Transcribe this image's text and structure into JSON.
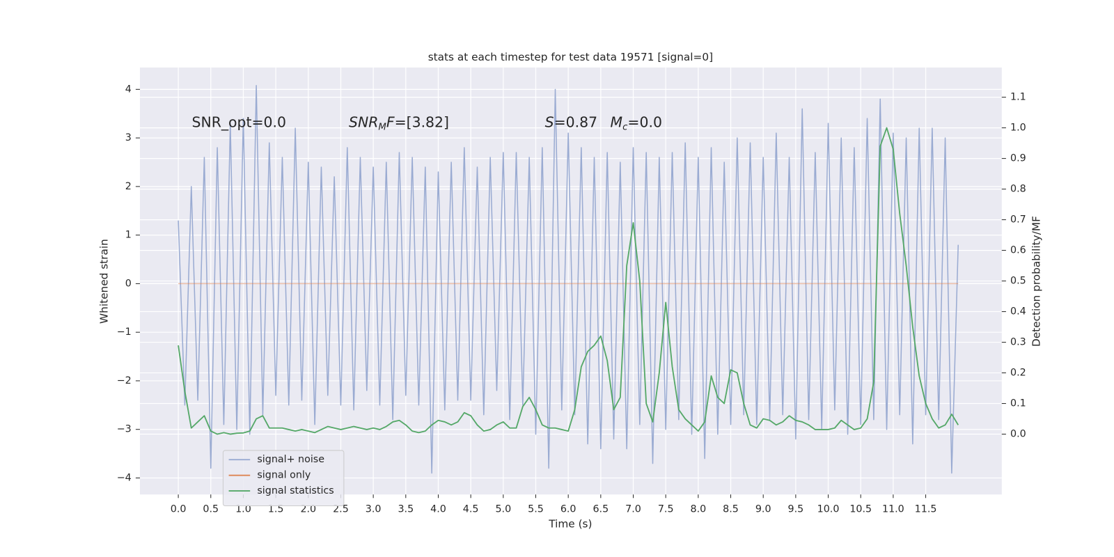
{
  "chart_data": {
    "type": "line",
    "title": "stats at each timestep for test data 19571 [signal=0]",
    "xlabel": "Time (s)",
    "ylabel": "Whitened strain",
    "y2label": "Detection probability/MF",
    "annotations": [
      [
        {
          "text": "SNR_opt=0.0"
        }
      ],
      [
        {
          "text": "SNR",
          "italic": true
        },
        {
          "text": "M",
          "italic": true,
          "sub": true
        },
        {
          "text": "F",
          "italic": true
        },
        {
          "text": "=[3.82]"
        }
      ],
      [
        {
          "text": "S",
          "italic": true
        },
        {
          "text": "=0.87"
        }
      ],
      [
        {
          "text": "M",
          "italic": true
        },
        {
          "text": "c",
          "italic": true,
          "sub": true
        },
        {
          "text": "=0.0"
        }
      ]
    ],
    "x": [
      0,
      0.1,
      0.2,
      0.3,
      0.4,
      0.5,
      0.6,
      0.7,
      0.8,
      0.9,
      1,
      1.1,
      1.2,
      1.3,
      1.4,
      1.5,
      1.6,
      1.7,
      1.8,
      1.9,
      2,
      2.1,
      2.2,
      2.3,
      2.4,
      2.5,
      2.6,
      2.7,
      2.8,
      2.9,
      3,
      3.1,
      3.2,
      3.3,
      3.4,
      3.5,
      3.6,
      3.7,
      3.8,
      3.9,
      4,
      4.1,
      4.2,
      4.3,
      4.4,
      4.5,
      4.6,
      4.7,
      4.8,
      4.9,
      5,
      5.1,
      5.2,
      5.3,
      5.4,
      5.5,
      5.6,
      5.7,
      5.8,
      5.9,
      6,
      6.1,
      6.2,
      6.3,
      6.4,
      6.5,
      6.6,
      6.7,
      6.8,
      6.9,
      7,
      7.1,
      7.2,
      7.3,
      7.4,
      7.5,
      7.6,
      7.7,
      7.8,
      7.9,
      8,
      8.1,
      8.2,
      8.3,
      8.4,
      8.5,
      8.6,
      8.7,
      8.8,
      8.9,
      9,
      9.1,
      9.2,
      9.3,
      9.4,
      9.5,
      9.6,
      9.7,
      9.8,
      9.9,
      10,
      10.1,
      10.2,
      10.3,
      10.4,
      10.5,
      10.6,
      10.7,
      10.8,
      10.9,
      11,
      11.1,
      11.2,
      11.3,
      11.4,
      11.5,
      11.6,
      11.7,
      11.8,
      11.9,
      12
    ],
    "series": [
      {
        "name": "signal+ noise",
        "color": "#9aabd2",
        "values": [
          1.3,
          -2.5,
          2.0,
          -2.4,
          2.6,
          -3.8,
          2.8,
          -2.9,
          3.3,
          -3.0,
          3.4,
          -3.1,
          4.08,
          -2.7,
          2.9,
          -2.3,
          2.6,
          -2.5,
          3.2,
          -2.4,
          2.5,
          -2.9,
          2.4,
          -2.3,
          2.2,
          -2.5,
          2.8,
          -2.6,
          2.6,
          -2.2,
          2.4,
          -2.5,
          2.5,
          -2.8,
          2.7,
          -2.3,
          2.6,
          -2.5,
          2.4,
          -3.9,
          2.3,
          -2.6,
          2.5,
          -2.4,
          2.8,
          -2.4,
          2.4,
          -2.7,
          2.6,
          -2.2,
          2.7,
          -2.8,
          2.7,
          -2.5,
          2.6,
          -3.1,
          2.8,
          -3.8,
          4.0,
          -2.6,
          3.1,
          -2.7,
          2.8,
          -3.3,
          2.6,
          -3.4,
          2.7,
          -3.2,
          2.5,
          -3.4,
          2.8,
          -2.9,
          2.7,
          -3.7,
          2.6,
          -3.0,
          2.7,
          -2.8,
          2.9,
          -3.1,
          2.6,
          -3.6,
          2.8,
          -3.1,
          2.5,
          -2.9,
          3.0,
          -2.7,
          2.9,
          -2.9,
          2.6,
          -2.8,
          3.1,
          -2.7,
          2.6,
          -3.2,
          3.6,
          -2.8,
          2.7,
          -3.0,
          3.3,
          -2.6,
          3.0,
          -3.1,
          2.8,
          -2.9,
          3.4,
          -2.8,
          3.8,
          -3.0,
          3.1,
          -2.7,
          3.0,
          -3.3,
          3.2,
          -2.7,
          3.2,
          -2.8,
          3.0,
          -3.9,
          0.8
        ]
      },
      {
        "name": "signal only",
        "color": "#dd8452",
        "values": [
          0,
          0,
          0,
          0,
          0,
          0,
          0,
          0,
          0,
          0,
          0,
          0,
          0,
          0,
          0,
          0,
          0,
          0,
          0,
          0,
          0,
          0,
          0,
          0,
          0,
          0,
          0,
          0,
          0,
          0,
          0,
          0,
          0,
          0,
          0,
          0,
          0,
          0,
          0,
          0,
          0,
          0,
          0,
          0,
          0,
          0,
          0,
          0,
          0,
          0,
          0,
          0,
          0,
          0,
          0,
          0,
          0,
          0,
          0,
          0,
          0,
          0,
          0,
          0,
          0,
          0,
          0,
          0,
          0,
          0,
          0,
          0,
          0,
          0,
          0,
          0,
          0,
          0,
          0,
          0,
          0,
          0,
          0,
          0,
          0,
          0,
          0,
          0,
          0,
          0,
          0,
          0,
          0,
          0,
          0,
          0,
          0,
          0,
          0,
          0,
          0,
          0,
          0,
          0,
          0,
          0,
          0,
          0,
          0,
          0,
          0,
          0,
          0,
          0,
          0,
          0,
          0,
          0,
          0,
          0,
          0
        ]
      },
      {
        "name": "signal statistics",
        "color": "#55a868",
        "axis": "y2",
        "values": [
          0.29,
          0.14,
          0.02,
          0.04,
          0.06,
          0.01,
          0.0,
          0.005,
          0.0,
          0.003,
          0.004,
          0.01,
          0.05,
          0.06,
          0.02,
          0.02,
          0.02,
          0.015,
          0.01,
          0.015,
          0.01,
          0.005,
          0.015,
          0.025,
          0.02,
          0.015,
          0.02,
          0.025,
          0.02,
          0.015,
          0.02,
          0.015,
          0.025,
          0.04,
          0.045,
          0.03,
          0.01,
          0.005,
          0.01,
          0.03,
          0.045,
          0.04,
          0.03,
          0.04,
          0.07,
          0.06,
          0.03,
          0.01,
          0.015,
          0.03,
          0.04,
          0.02,
          0.02,
          0.09,
          0.12,
          0.08,
          0.03,
          0.02,
          0.02,
          0.015,
          0.01,
          0.08,
          0.22,
          0.27,
          0.29,
          0.32,
          0.24,
          0.08,
          0.12,
          0.55,
          0.69,
          0.5,
          0.1,
          0.04,
          0.2,
          0.43,
          0.22,
          0.08,
          0.05,
          0.03,
          0.01,
          0.04,
          0.19,
          0.12,
          0.1,
          0.21,
          0.2,
          0.1,
          0.03,
          0.02,
          0.05,
          0.045,
          0.03,
          0.04,
          0.06,
          0.045,
          0.04,
          0.03,
          0.015,
          0.015,
          0.015,
          0.02,
          0.045,
          0.03,
          0.015,
          0.02,
          0.05,
          0.17,
          0.94,
          1.0,
          0.93,
          0.72,
          0.55,
          0.35,
          0.19,
          0.1,
          0.05,
          0.02,
          0.03,
          0.065,
          0.03
        ]
      }
    ],
    "xlim": [
      -0.59,
      12.67
    ],
    "ylim": [
      -4.34,
      4.45
    ],
    "y2lim": [
      -0.197,
      1.197
    ],
    "xticks": [
      {
        "value": 0,
        "label": "0.0"
      },
      0.5,
      {
        "value": 1,
        "label": "1.0"
      },
      1.5,
      {
        "value": 2,
        "label": "2.0"
      },
      2.5,
      {
        "value": 3,
        "label": "3.0"
      },
      3.5,
      {
        "value": 4,
        "label": "4.0"
      },
      4.5,
      {
        "value": 5,
        "label": "5.0"
      },
      5.5,
      {
        "value": 6,
        "label": "6.0"
      },
      6.5,
      {
        "value": 7,
        "label": "7.0"
      },
      7.5,
      {
        "value": 8,
        "label": "8.0"
      },
      8.5,
      {
        "value": 9,
        "label": "9.0"
      },
      9.5,
      {
        "value": 10,
        "label": "10.0"
      },
      10.5,
      {
        "value": 11,
        "label": "11.0"
      },
      11.5
    ],
    "yticks": [
      {
        "value": -4,
        "label": "−4"
      },
      {
        "value": -3,
        "label": "−3"
      },
      {
        "value": -2,
        "label": "−2"
      },
      {
        "value": -1,
        "label": "−1"
      },
      0,
      1,
      2,
      3,
      4
    ],
    "y2ticks": [
      {
        "value": 0,
        "label": "0.0"
      },
      0.1,
      0.2,
      0.3,
      0.4,
      0.5,
      0.6,
      0.7,
      0.8,
      0.9,
      {
        "value": 1,
        "label": "1.0"
      },
      1.1
    ],
    "grid": true,
    "legend": "lower left"
  }
}
